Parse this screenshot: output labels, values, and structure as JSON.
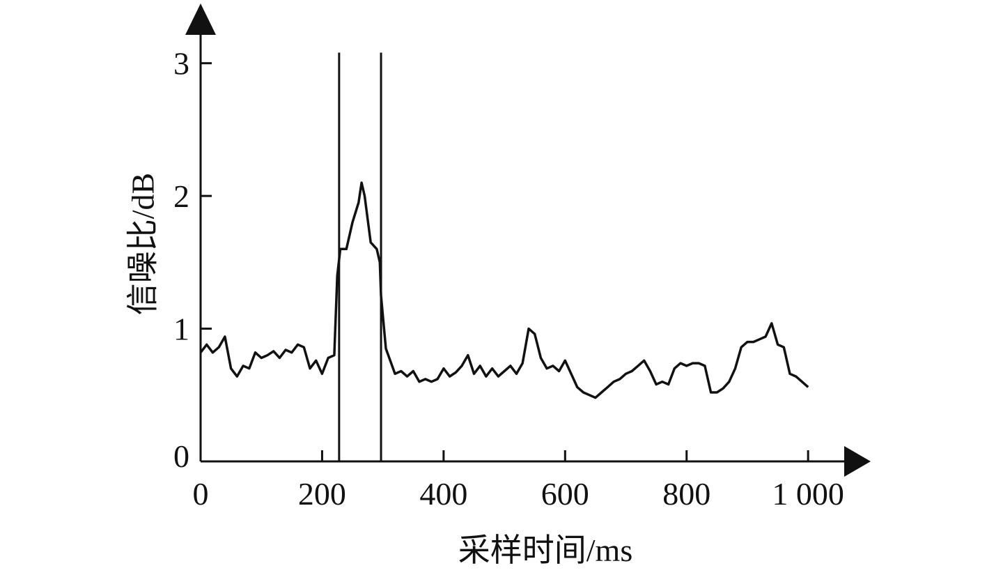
{
  "chart_data": {
    "type": "line",
    "xlabel": "采样时间/ms",
    "ylabel": "信噪比/dB",
    "x": [
      0,
      10,
      20,
      30,
      40,
      50,
      60,
      70,
      80,
      90,
      100,
      110,
      120,
      130,
      140,
      150,
      160,
      170,
      180,
      190,
      200,
      210,
      220,
      225,
      230,
      240,
      250,
      260,
      265,
      270,
      280,
      290,
      295,
      297,
      305,
      320,
      330,
      340,
      350,
      360,
      370,
      380,
      390,
      400,
      410,
      420,
      430,
      440,
      450,
      460,
      470,
      480,
      490,
      500,
      510,
      520,
      530,
      540,
      550,
      560,
      570,
      580,
      590,
      600,
      610,
      620,
      630,
      640,
      650,
      660,
      670,
      680,
      690,
      700,
      710,
      720,
      730,
      740,
      750,
      760,
      770,
      780,
      790,
      800,
      810,
      820,
      830,
      840,
      850,
      860,
      870,
      880,
      890,
      900,
      910,
      920,
      930,
      940,
      950,
      960,
      970,
      980,
      990,
      1000
    ],
    "series": [
      {
        "color": "#111111",
        "values": [
          0.82,
          0.88,
          0.82,
          0.86,
          0.94,
          0.7,
          0.64,
          0.72,
          0.7,
          0.82,
          0.78,
          0.8,
          0.83,
          0.78,
          0.84,
          0.82,
          0.88,
          0.86,
          0.7,
          0.76,
          0.66,
          0.78,
          0.8,
          1.4,
          1.6,
          1.6,
          1.8,
          1.95,
          2.1,
          2.0,
          1.65,
          1.6,
          1.5,
          1.25,
          0.85,
          0.66,
          0.68,
          0.64,
          0.68,
          0.6,
          0.62,
          0.6,
          0.62,
          0.7,
          0.64,
          0.67,
          0.72,
          0.8,
          0.66,
          0.72,
          0.64,
          0.7,
          0.64,
          0.68,
          0.72,
          0.66,
          0.74,
          1.0,
          0.96,
          0.78,
          0.7,
          0.72,
          0.68,
          0.76,
          0.66,
          0.56,
          0.52,
          0.5,
          0.48,
          0.52,
          0.56,
          0.6,
          0.62,
          0.66,
          0.68,
          0.72,
          0.76,
          0.68,
          0.58,
          0.6,
          0.58,
          0.7,
          0.74,
          0.72,
          0.74,
          0.74,
          0.72,
          0.52,
          0.52,
          0.55,
          0.6,
          0.7,
          0.86,
          0.9,
          0.9,
          0.92,
          0.94,
          1.04,
          0.88,
          0.86,
          0.66,
          0.64,
          0.6,
          0.56
        ]
      }
    ],
    "vlines": [
      {
        "x": 228,
        "top": 3.08
      },
      {
        "x": 297,
        "top": 3.08
      }
    ],
    "xlim": [
      0,
      1103
    ],
    "ylim": [
      0,
      3.45
    ],
    "xticks": [
      0,
      200,
      400,
      600,
      800,
      {
        "value": 1000,
        "label": "1 000"
      }
    ],
    "yticks": [
      0,
      1,
      2,
      3
    ]
  }
}
